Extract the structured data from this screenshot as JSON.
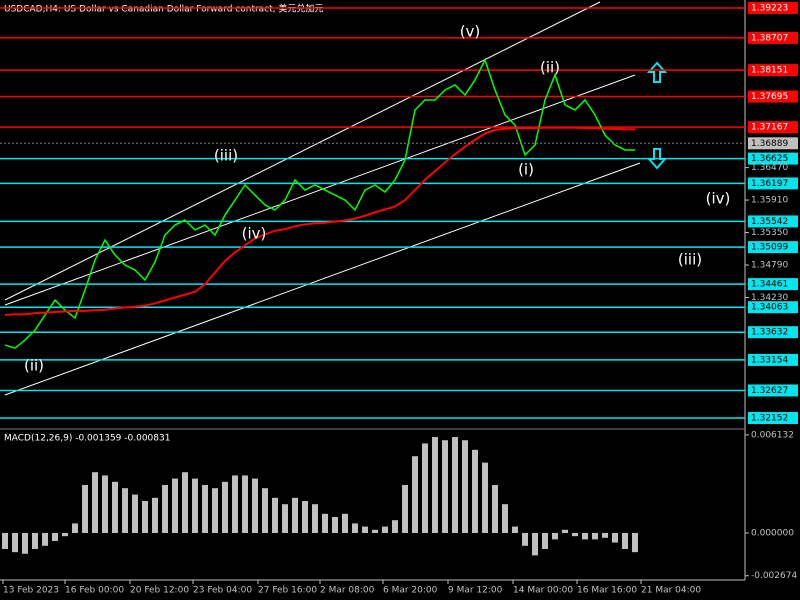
{
  "header": {
    "title": "USDCAD,H4:  US Dollar vs Canadian Dollar Forward contract, 美元兑加元"
  },
  "chart_data": [
    {
      "type": "line",
      "series": [
        {
          "name": "Close",
          "color": "#00ff00",
          "values": [
            1.3341,
            1.33358,
            1.33496,
            1.33669,
            1.33927,
            1.34186,
            1.34014,
            1.33876,
            1.34359,
            1.34876,
            1.35221,
            1.34962,
            1.3479,
            1.34704,
            1.34531,
            1.34842,
            1.35307,
            1.3548,
            1.35566,
            1.35394,
            1.3548,
            1.35307,
            1.35652,
            1.35911,
            1.3617,
            1.35997,
            1.35825,
            1.35739,
            1.35911,
            1.36256,
            1.36083,
            1.3617,
            1.36083,
            1.35997,
            1.35911,
            1.35739,
            1.36083,
            1.3617,
            1.36049,
            1.36256,
            1.36601,
            1.37464,
            1.37636,
            1.37636,
            1.37809,
            1.37895,
            1.37722,
            1.37981,
            1.38326,
            1.37809,
            1.37377,
            1.37205,
            1.36687,
            1.3686,
            1.37636,
            1.38067,
            1.3755,
            1.37464,
            1.37636,
            1.37377,
            1.37032,
            1.3686,
            1.36774,
            1.36774
          ]
        },
        {
          "name": "MA",
          "color": "#ff0000",
          "values": [
            1.3393,
            1.3394,
            1.3394,
            1.3396,
            1.3397,
            1.3398,
            1.3399,
            1.34,
            1.34,
            1.3401,
            1.3402,
            1.3404,
            1.3406,
            1.3407,
            1.3409,
            1.3413,
            1.3418,
            1.3423,
            1.3428,
            1.3433,
            1.3446,
            1.3466,
            1.3486,
            1.3501,
            1.3513,
            1.3525,
            1.3532,
            1.3538,
            1.3541,
            1.3546,
            1.3549,
            1.3551,
            1.3552,
            1.3554,
            1.3556,
            1.3559,
            1.3564,
            1.357,
            1.3575,
            1.358,
            1.3591,
            1.3608,
            1.3626,
            1.3641,
            1.3656,
            1.367,
            1.3683,
            1.3695,
            1.3706,
            1.3712,
            1.3714,
            1.3715,
            1.3715,
            1.3715,
            1.3716,
            1.3716,
            1.3716,
            1.3716,
            1.3715,
            1.3715,
            1.3714,
            1.3714,
            1.3713,
            1.3713
          ]
        }
      ],
      "ylim": [
        1.3198,
        1.3936
      ],
      "yticks": [
        {
          "value": 1.3647,
          "label": "1.36470"
        },
        {
          "value": 1.3591,
          "label": "1.35910"
        },
        {
          "value": 1.3535,
          "label": "1.35350"
        },
        {
          "value": 1.3479,
          "label": "1.34790"
        },
        {
          "value": 1.3423,
          "label": "1.34230"
        }
      ],
      "levels": [
        {
          "value": 1.39223,
          "color": "#ff0000"
        },
        {
          "value": 1.38707,
          "color": "#ff0000"
        },
        {
          "value": 1.38151,
          "color": "#ff0000"
        },
        {
          "value": 1.37695,
          "color": "#ff0000"
        },
        {
          "value": 1.37167,
          "color": "#ff0000"
        },
        {
          "value": 1.36625,
          "color": "#00e5ee"
        },
        {
          "value": 1.36197,
          "color": "#00e5ee"
        },
        {
          "value": 1.35542,
          "color": "#00e5ee"
        },
        {
          "value": 1.35099,
          "color": "#00e5ee"
        },
        {
          "value": 1.34461,
          "color": "#00e5ee"
        },
        {
          "value": 1.34063,
          "color": "#00e5ee"
        },
        {
          "value": 1.33632,
          "color": "#00e5ee"
        },
        {
          "value": 1.33154,
          "color": "#00e5ee"
        },
        {
          "value": 1.32627,
          "color": "#00e5ee"
        },
        {
          "value": 1.32152,
          "color": "#00e5ee"
        }
      ],
      "current_price": 1.36889
    },
    {
      "type": "bar",
      "title": "MACD(12,26,9) -0.001359 -0.000831",
      "color": "#c0c0c0",
      "values": [
        -0.001,
        -0.0012,
        -0.0013,
        -0.001,
        -0.0008,
        -0.0005,
        -0.0002,
        0.0006,
        0.003,
        0.0038,
        0.0036,
        0.0032,
        0.0028,
        0.0024,
        0.002,
        0.0022,
        0.003,
        0.0034,
        0.0038,
        0.0034,
        0.003,
        0.0028,
        0.0032,
        0.0036,
        0.0036,
        0.0034,
        0.0028,
        0.0022,
        0.0018,
        0.0022,
        0.002,
        0.0018,
        0.0012,
        0.001,
        0.0012,
        0.0006,
        0.0004,
        0.0002,
        0.0004,
        0.0008,
        0.003,
        0.0048,
        0.0056,
        0.006,
        0.0058,
        0.006,
        0.0058,
        0.0052,
        0.0044,
        0.003,
        0.0018,
        0.0004,
        -0.0008,
        -0.0014,
        -0.001,
        -0.0004,
        0.0002,
        -0.0002,
        -0.0004,
        -0.0004,
        -0.0003,
        -0.0006,
        -0.001,
        -0.0012
      ],
      "ylim": [
        -0.00294,
        0.00644
      ],
      "yticks": [
        0.006132,
        {
          "value": 0,
          "label": "0.000000"
        },
        -0.002674
      ]
    }
  ],
  "wave_labels": [
    "(v)",
    "(ii)",
    "(iii)",
    "(iv)",
    "(i)",
    "(ii)",
    "(iv)",
    "(iii)"
  ],
  "time_labels": [
    "13 Feb 2023",
    "16 Feb 00:00",
    "20 Feb 12:00",
    "23 Feb 04:00",
    "27 Feb 16:00",
    "2 Mar 08:00",
    "6 Mar 20:00",
    "9 Mar 12:00",
    "14 Mar 00:00",
    "16 Mar 16:00",
    "21 Mar 04:00"
  ]
}
